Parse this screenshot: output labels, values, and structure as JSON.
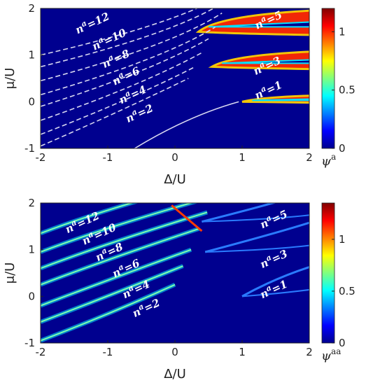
{
  "chart_data": [
    {
      "type": "heatmap",
      "xlabel": "Δ/U",
      "ylabel": "μ/U",
      "xlim": [
        -2,
        2
      ],
      "ylim": [
        -1,
        2
      ],
      "xticks": [
        "-2",
        "-1",
        "0",
        "1",
        "2"
      ],
      "yticks": [
        "-1",
        "0",
        "1",
        "2"
      ],
      "colorbar": {
        "label": "ψ",
        "label_sup": "a",
        "min": 0,
        "max": 1.2,
        "ticks": [
          "0",
          "0.5",
          "1"
        ]
      },
      "region_labels": [
        {
          "text": "n",
          "sup": "a",
          "suffix": "=1"
        },
        {
          "text": "n",
          "sup": "a",
          "suffix": "=2"
        },
        {
          "text": "n",
          "sup": "a",
          "suffix": "=3"
        },
        {
          "text": "n",
          "sup": "a",
          "suffix": "=4"
        },
        {
          "text": "n",
          "sup": "a",
          "suffix": "=5"
        },
        {
          "text": "n",
          "sup": "a",
          "suffix": "=6"
        },
        {
          "text": "n",
          "sup": "a",
          "suffix": "=8"
        },
        {
          "text": "n",
          "sup": "a",
          "suffix": "=10"
        },
        {
          "text": "n",
          "sup": "a",
          "suffix": "=12"
        }
      ],
      "region_positions": [
        [
          1.22,
          0.05
        ],
        [
          -0.7,
          -0.45
        ],
        [
          1.2,
          0.57
        ],
        [
          -0.8,
          -0.05
        ],
        [
          1.22,
          1.55
        ],
        [
          -0.9,
          0.35
        ],
        [
          -1.05,
          0.72
        ],
        [
          -1.2,
          1.1
        ],
        [
          -1.45,
          1.45
        ]
      ],
      "series": [
        {
          "name": "",
          "style": "solid",
          "lobes": [
            {
              "x_tip": 1.0,
              "y": 0.0,
              "w": 0.1
            },
            {
              "x_tip": 0.55,
              "y": 0.75,
              "w": 0.25
            },
            {
              "x_tip": 0.35,
              "y": 1.5,
              "w": 0.35
            }
          ]
        },
        {
          "name": "",
          "style": "dashed",
          "boundaries_y_at_x_minus2": [
            -0.95,
            -0.7,
            -0.4,
            -0.1,
            0.15,
            0.45,
            0.75,
            1.0
          ]
        }
      ],
      "colormap": "jet",
      "background_value": 0
    },
    {
      "type": "heatmap",
      "xlabel": "Δ/U",
      "ylabel": "μ/U",
      "xlim": [
        -2,
        2
      ],
      "ylim": [
        -1,
        2
      ],
      "xticks": [
        "-2",
        "-1",
        "0",
        "1",
        "2"
      ],
      "yticks": [
        "-1",
        "0",
        "1",
        "2"
      ],
      "colorbar": {
        "label": "ψ",
        "label_sup": "aa",
        "min": 0,
        "max": 1.35,
        "ticks": [
          "0",
          "0.5",
          "1"
        ]
      },
      "region_labels": [
        {
          "text": "n",
          "sup": "a",
          "suffix": "=1"
        },
        {
          "text": "n",
          "sup": "a",
          "suffix": "=2"
        },
        {
          "text": "n",
          "sup": "a",
          "suffix": "=3"
        },
        {
          "text": "n",
          "sup": "a",
          "suffix": "=4"
        },
        {
          "text": "n",
          "sup": "a",
          "suffix": "=5"
        },
        {
          "text": "n",
          "sup": "a",
          "suffix": "=6"
        },
        {
          "text": "n",
          "sup": "a",
          "suffix": "=8"
        },
        {
          "text": "n",
          "sup": "a",
          "suffix": "=10"
        },
        {
          "text": "n",
          "sup": "a",
          "suffix": "=12"
        }
      ],
      "region_positions": [
        [
          1.3,
          -0.05
        ],
        [
          -0.6,
          -0.45
        ],
        [
          1.3,
          0.6
        ],
        [
          -0.75,
          -0.05
        ],
        [
          1.3,
          1.45
        ],
        [
          -0.9,
          0.4
        ],
        [
          -1.15,
          0.75
        ],
        [
          -1.35,
          1.1
        ],
        [
          -1.6,
          1.35
        ]
      ],
      "series": [
        {
          "name": "",
          "style": "ridge",
          "lines_y_at_x_minus2": [
            -0.95,
            -0.55,
            -0.2,
            0.25,
            0.6,
            0.95,
            1.35
          ]
        }
      ],
      "colormap": "jet",
      "background_value": 0
    }
  ]
}
